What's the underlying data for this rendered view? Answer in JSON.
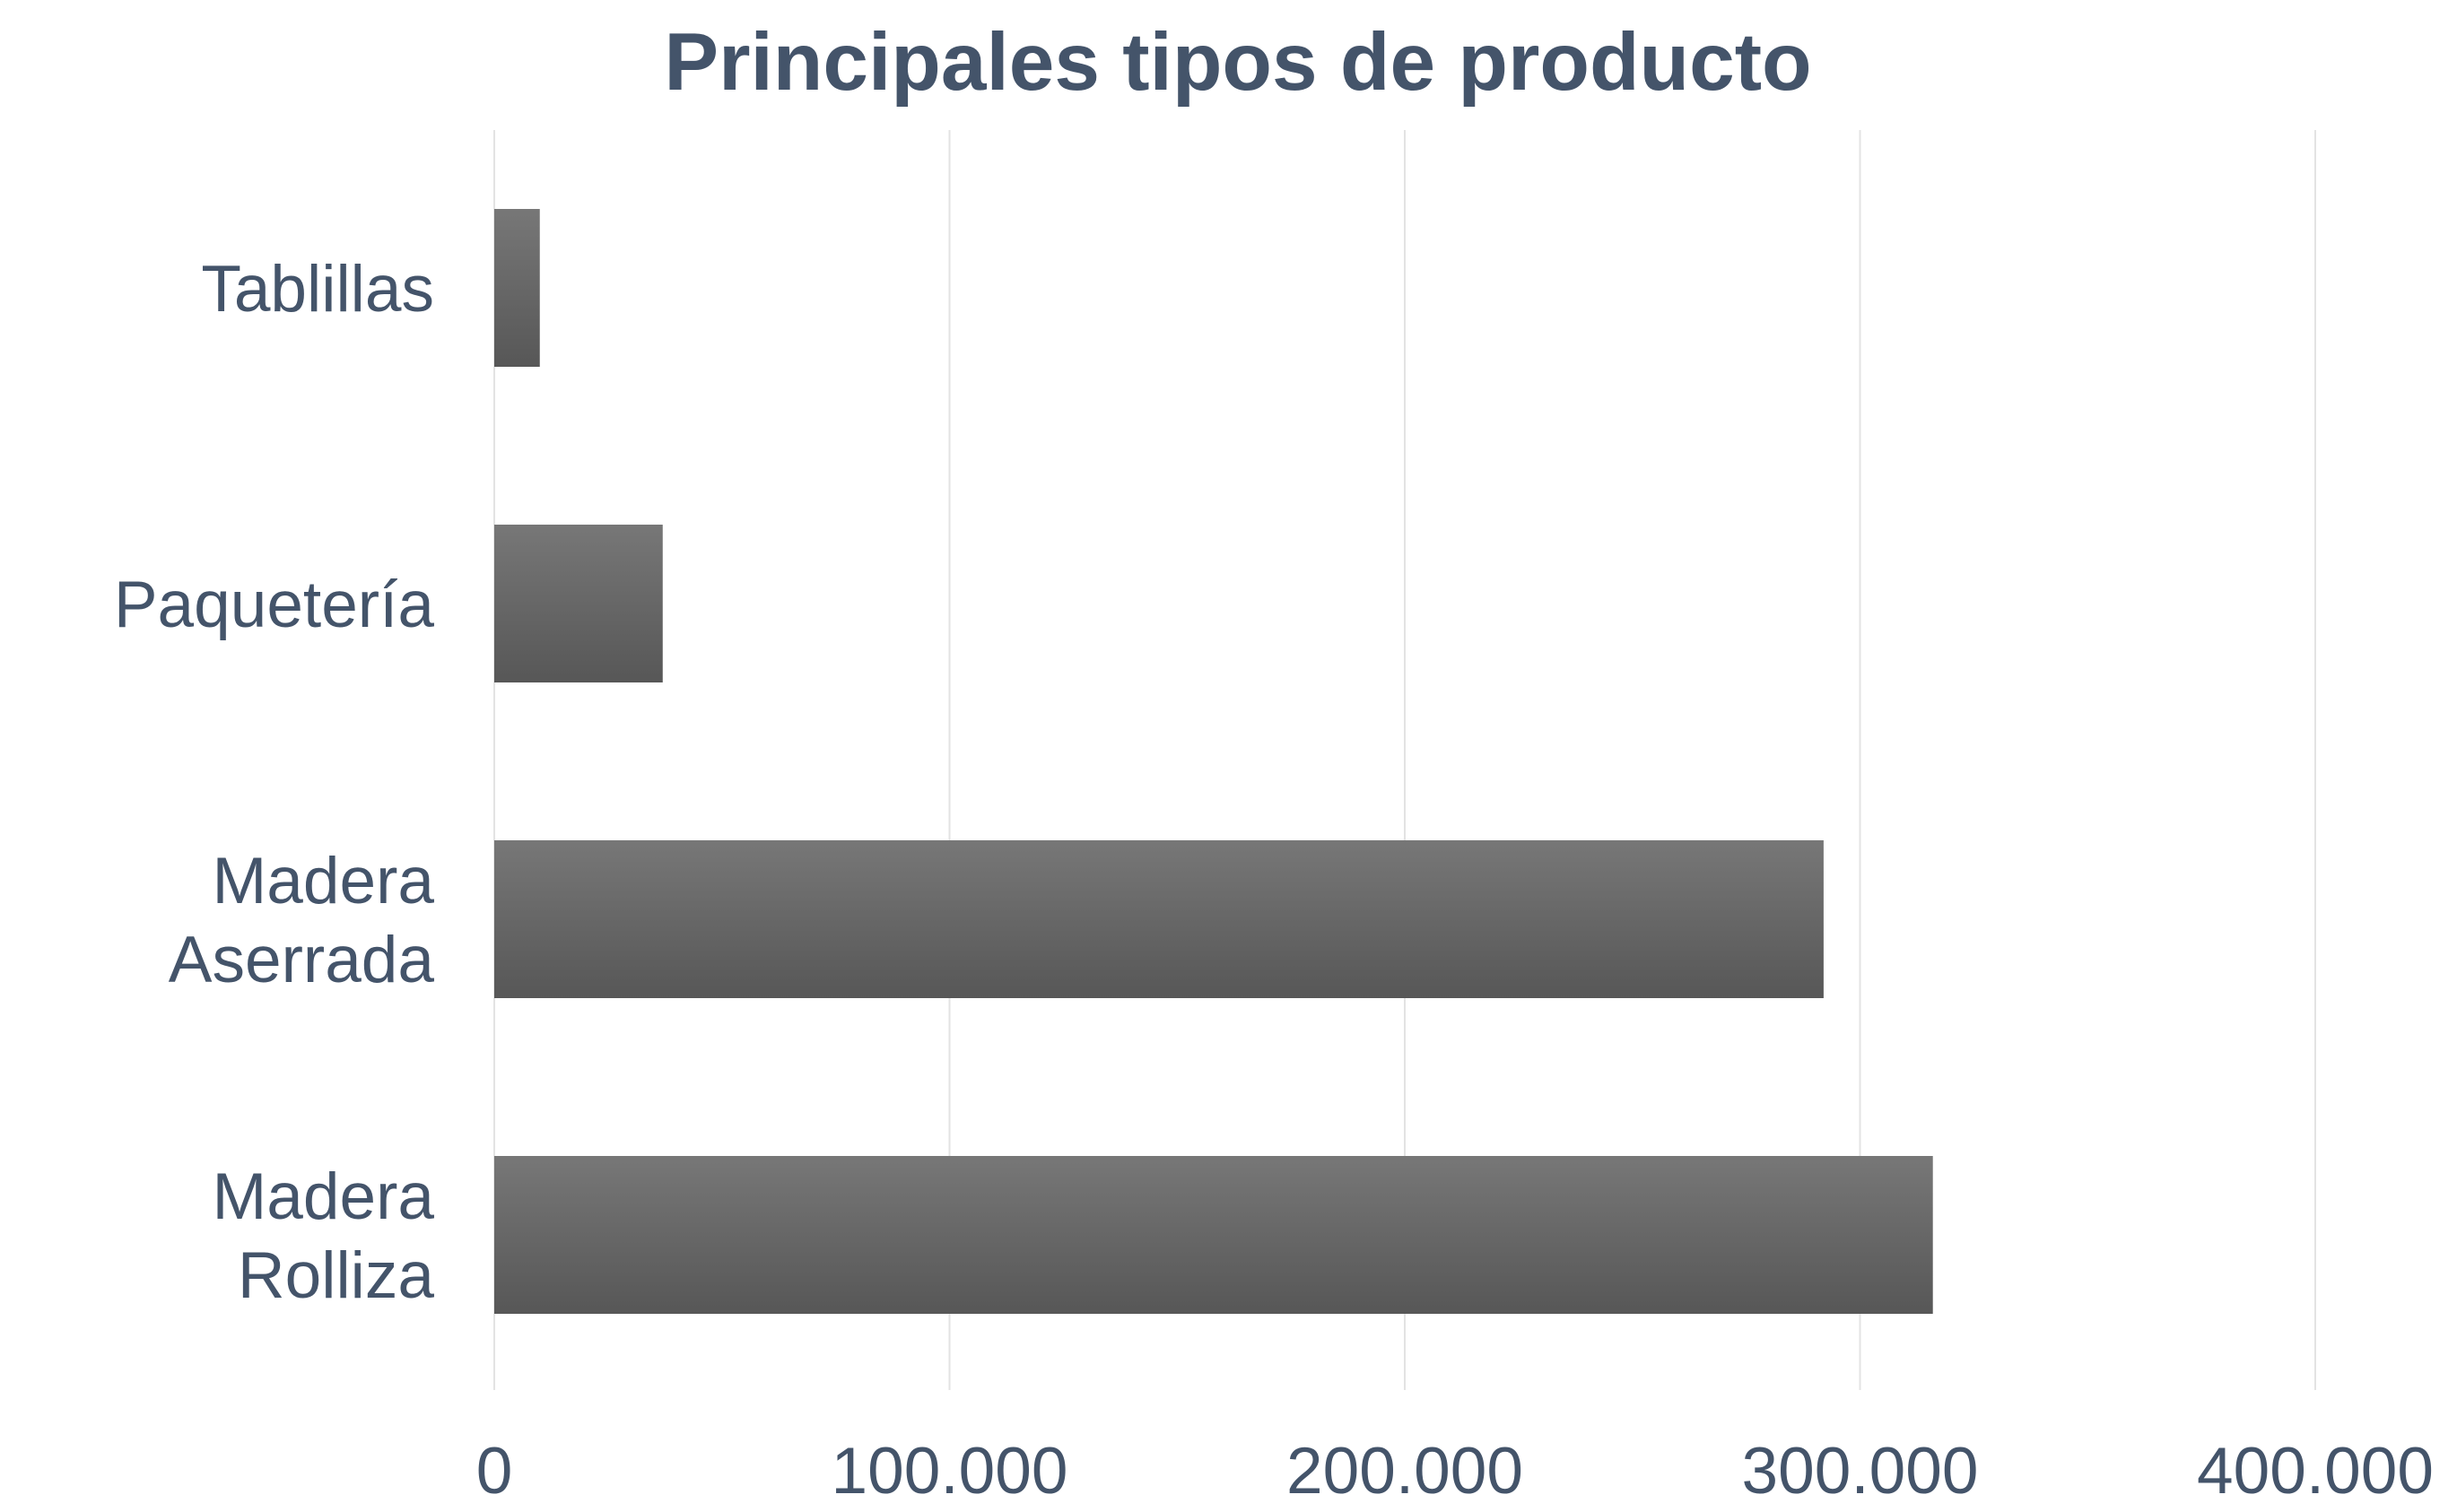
{
  "chart_data": {
    "type": "bar",
    "orientation": "horizontal",
    "title": "Principales tipos de producto",
    "xlabel": "",
    "ylabel": "",
    "categories": [
      "Tablillas",
      "Paquetería",
      "Madera Aserrada",
      "Madera Rolliza"
    ],
    "category_lines": [
      [
        "Tablillas"
      ],
      [
        "Paquetería"
      ],
      [
        "Madera",
        "Aserrada"
      ],
      [
        "Madera",
        "Rolliza"
      ]
    ],
    "values": [
      10000,
      37000,
      292000,
      316000
    ],
    "xlim": [
      0,
      400000
    ],
    "xticks": [
      0,
      100000,
      200000,
      300000,
      400000
    ],
    "xtick_labels": [
      "0",
      "100.000",
      "200.000",
      "300.000",
      "400.000"
    ],
    "grid": "vertical",
    "legend": "none"
  },
  "colors": {
    "text": "#44546a",
    "bar_top": "#777777",
    "bar_bottom": "#575757",
    "grid": "#e3e3e3"
  }
}
